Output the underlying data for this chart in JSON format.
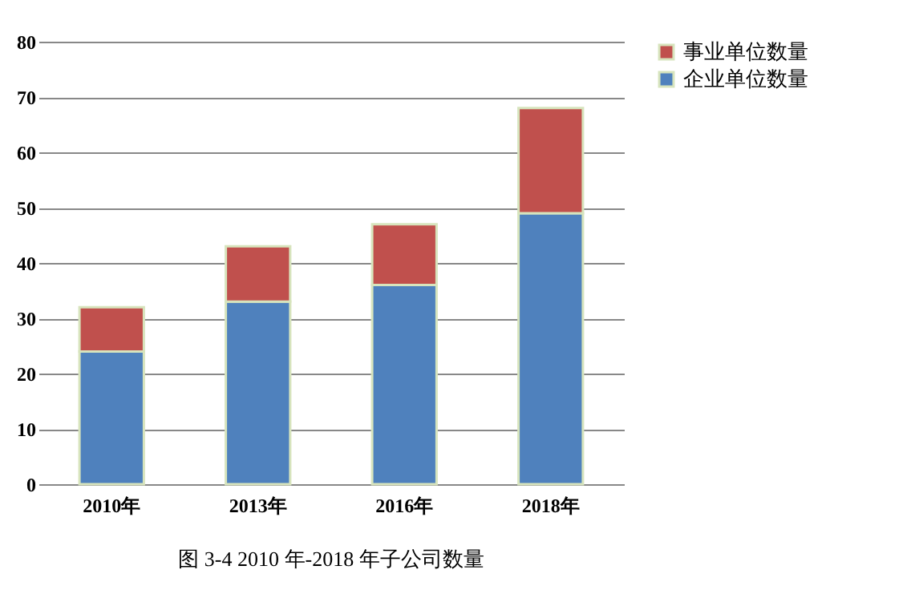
{
  "chart_data": {
    "type": "bar",
    "title": "图 3-4 2010 年-2018 年子公司数量",
    "categories": [
      "2010年",
      "2013年",
      "2016年",
      "2018年"
    ],
    "stacked": true,
    "series": [
      {
        "name": "企业单位数量",
        "color": "#4f81bd",
        "values": [
          24,
          33,
          36,
          49
        ]
      },
      {
        "name": "事业单位数量",
        "color": "#c0504d",
        "values": [
          8,
          10,
          11,
          19
        ]
      }
    ],
    "ylim": [
      0,
      80
    ],
    "yticks": [
      0,
      10,
      20,
      30,
      40,
      50,
      60,
      70,
      80
    ],
    "grid": "y",
    "legend": "right"
  }
}
